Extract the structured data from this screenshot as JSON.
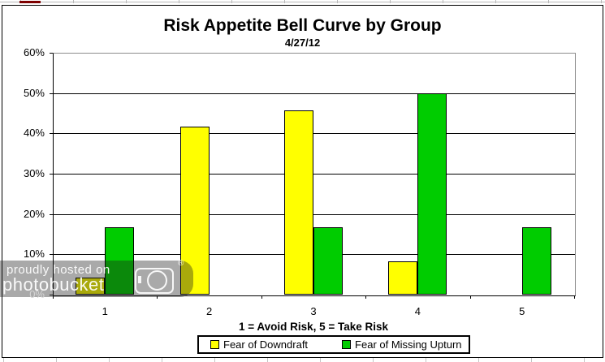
{
  "chart_data": {
    "type": "bar",
    "title": "Risk Appetite Bell Curve by Group",
    "subtitle": "4/27/12",
    "categories": [
      "1",
      "2",
      "3",
      "4",
      "5"
    ],
    "series": [
      {
        "name": "Fear of Downdraft",
        "color": "#FFFF00",
        "values": [
          4.2,
          41.7,
          45.8,
          8.3,
          0
        ]
      },
      {
        "name": "Fear of Missing Upturn",
        "color": "#00CC00",
        "values": [
          16.7,
          0,
          16.7,
          50,
          16.7
        ]
      }
    ],
    "xlabel": "1 = Avoid Risk, 5 = Take Risk",
    "ylabel": "",
    "ylim": [
      0,
      60
    ],
    "ytick_step": 10,
    "ytick_labels": [
      "0%",
      "10%",
      "20%",
      "30%",
      "40%",
      "50%",
      "60%"
    ],
    "grid": true,
    "legend_position": "bottom"
  },
  "watermark": {
    "line1": "proudly hosted on",
    "line2": "photobucket",
    "registered": "®"
  },
  "colors": {
    "bar_yellow": "#FFFF00",
    "bar_green": "#00CC00",
    "gridline": "#000000",
    "plot_border_gray": "#8C8C8C",
    "red_mark": "#7E0000",
    "watermark_text": "#FFFFFF"
  }
}
